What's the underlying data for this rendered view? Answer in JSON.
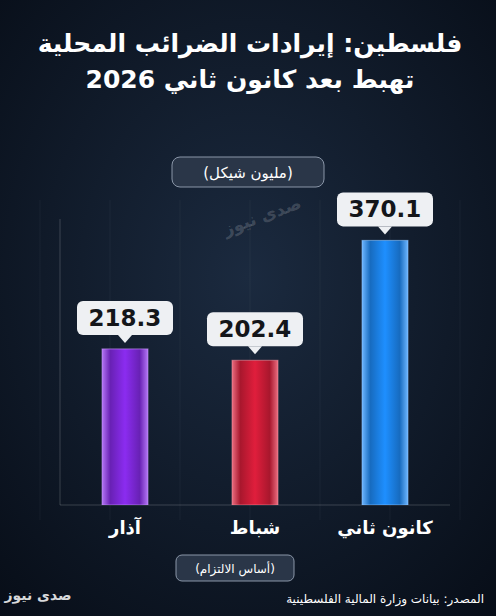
{
  "chart_data": {
    "type": "bar",
    "title": "فلسطين: إيرادات الضرائب المحلية\nتهبط بعد كانون ثاني 2026",
    "subtitle": "(مليون شيكل)",
    "categories": [
      "كانون ثاني",
      "شباط",
      "آذار"
    ],
    "values": [
      370.1,
      202.4,
      218.3
    ],
    "colors": [
      "#1e8fff",
      "#e01e3c",
      "#8b2cf0"
    ],
    "ylim": [
      0,
      400
    ],
    "grid": false,
    "data_labels": true,
    "tick_labels": "x",
    "note": "(أساس الالتزام)",
    "source": "المصدر: بيانات وزارة المالية الفلسطينية",
    "watermark": "صدى نيوز"
  }
}
